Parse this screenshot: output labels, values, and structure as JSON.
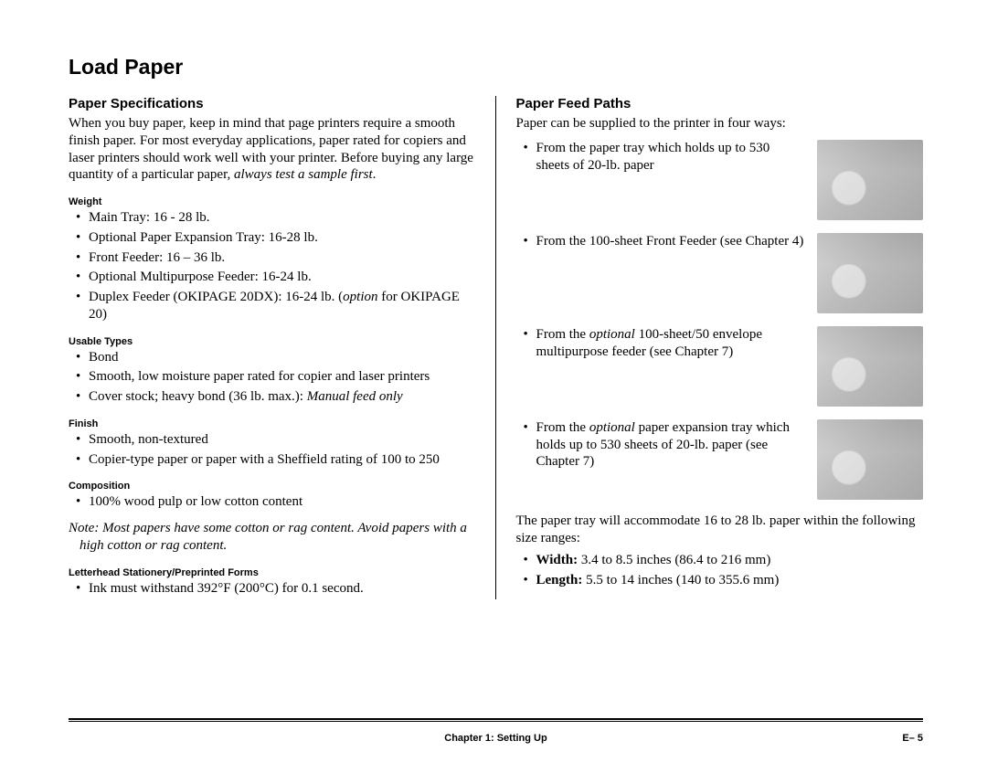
{
  "title": "Load Paper",
  "left": {
    "heading": "Paper Specifications",
    "intro_html": "When you buy paper, keep in mind that page printers require a smooth finish paper. For most everyday applications, paper rated for copiers and laser printers should work well with your printer. Before buying any large quantity of a particular paper, <em>always test a sample first</em>.",
    "weight_h": "Weight",
    "weight": [
      "Main Tray: 16 - 28 lb.",
      "Optional Paper Expansion Tray: 16-28 lb.",
      "Front Feeder: 16 – 36 lb.",
      "Optional Multipurpose Feeder: 16-24 lb.",
      "Duplex Feeder (OKIPAGE 20DX): 16-24 lb. (<em>option</em> for OKIPAGE 20)"
    ],
    "types_h": "Usable Types",
    "types": [
      "Bond",
      "Smooth, low moisture paper rated for copier and laser printers",
      "Cover stock; heavy bond (36 lb. max.): <em>Manual feed only</em>"
    ],
    "finish_h": "Finish",
    "finish": [
      "Smooth, non-textured",
      "Copier-type paper or paper with a Sheffield rating of 100 to 250"
    ],
    "comp_h": "Composition",
    "comp": [
      "100% wood pulp or low cotton content"
    ],
    "note_html": "<span class=\"lead\">Note:</span>  Most papers have some cotton or rag content. Avoid papers with a high cotton or rag content.",
    "letter_h": "Letterhead Stationery/Preprinted Forms",
    "letter": [
      "Ink must withstand 392°F (200°C) for 0.1 second."
    ]
  },
  "right": {
    "heading": "Paper Feed Paths",
    "intro": "Paper can be supplied to the printer in four ways:",
    "items": [
      "From the paper tray which holds up to 530 sheets of 20-lb. paper",
      "From the 100-sheet Front Feeder (see Chapter 4)",
      "From the <em>optional</em> 100-sheet/50 envelope multipurpose feeder (see Chapter 7)",
      "From the <em>optional</em> paper expansion tray which holds up to 530 sheets of 20-lb. paper (see Chapter 7)"
    ],
    "tray_text": "The paper tray will accommodate 16 to 28 lb. paper within the following size ranges:",
    "sizes": [
      "<strong>Width:</strong> 3.4 to 8.5 inches (86.4 to 216 mm)",
      "<strong>Length:</strong> 5.5 to 14 inches (140 to 355.6 mm)"
    ]
  },
  "footer": {
    "chapter": "Chapter 1: Setting Up",
    "page": "E– 5"
  }
}
